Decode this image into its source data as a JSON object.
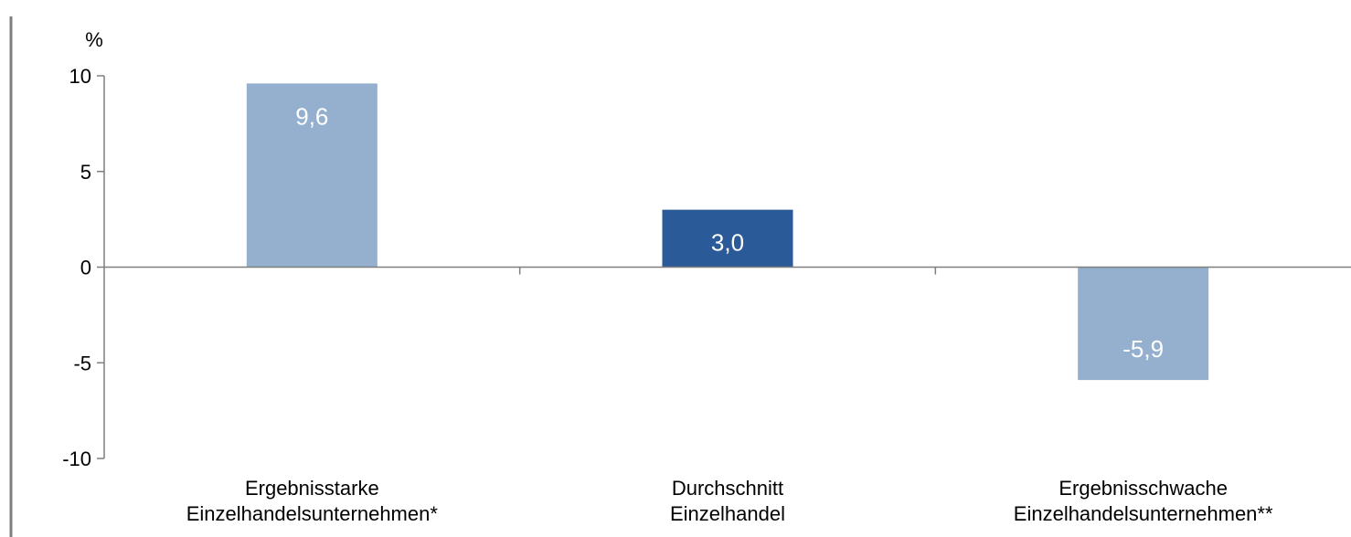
{
  "chart_data": {
    "type": "bar",
    "unit_label": "%",
    "categories": [
      [
        "Ergebnisstarke",
        "Einzelhandelsunternehmen*"
      ],
      [
        "Durchschnitt",
        "Einzelhandel"
      ],
      [
        "Ergebnisschwache",
        "Einzelhandelsunternehmen**"
      ]
    ],
    "values": [
      9.6,
      3.0,
      -5.9
    ],
    "value_labels": [
      "9,6",
      "3,0",
      "-5,9"
    ],
    "bar_colors": [
      "#95b0cf",
      "#2a5a98",
      "#95b0cf"
    ],
    "yticks": [
      10,
      5,
      0,
      -5,
      -10
    ],
    "ylim": [
      -10,
      10
    ],
    "grid": false,
    "legend": "none",
    "title": "",
    "xlabel": "",
    "ylabel": ""
  }
}
